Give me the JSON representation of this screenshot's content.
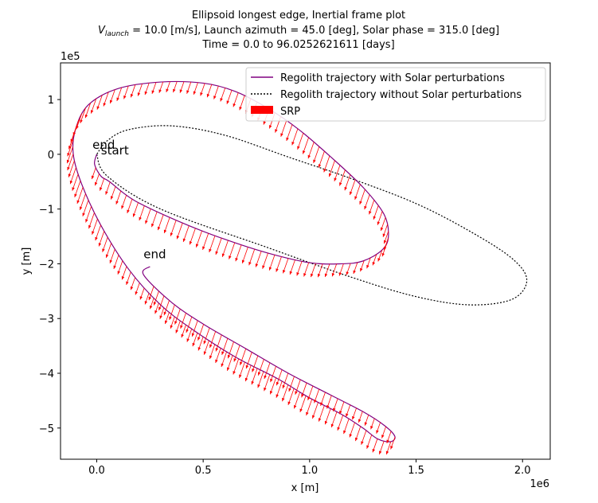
{
  "chart_data": {
    "type": "line",
    "title_lines": [
      "Ellipsoid longest edge, Inertial frame plot",
      "V_launch = 10.0 [m/s], Launch azimuth = 45.0 [deg], Solar phase = 315.0 [deg]",
      "Time = 0.0 to 96.0252621611 [days]"
    ],
    "title_line2_parts": {
      "symbol": "V",
      "subscript": "launch",
      "rest": " = 10.0 [m/s], Launch azimuth = 45.0 [deg], Solar phase = 315.0 [deg]"
    },
    "xlabel": "x [m]",
    "ylabel": "y [m]",
    "x_offset_label": "1e6",
    "y_offset_label": "1e5",
    "xlim": [
      -0.17,
      2.13
    ],
    "ylim": [
      -5.57,
      1.67
    ],
    "x_ticks": [
      0.0,
      0.5,
      1.0,
      1.5,
      2.0
    ],
    "x_tick_labels": [
      "0.0",
      "0.5",
      "1.0",
      "1.5",
      "2.0"
    ],
    "y_ticks": [
      1,
      0,
      -1,
      -2,
      -3,
      -4,
      -5
    ],
    "y_tick_labels": [
      "1",
      "0",
      "−1",
      "−2",
      "−3",
      "−4",
      "−5"
    ],
    "grid": false,
    "legend_placement": "top-right",
    "legend": [
      {
        "label": "Regolith trajectory with Solar perturbations",
        "color": "#800080",
        "style": "solid"
      },
      {
        "label": "Regolith trajectory without Solar perturbations",
        "color": "#000000",
        "style": "dotted"
      },
      {
        "label": "SRP",
        "color": "#ff0000",
        "style": "patch"
      }
    ],
    "series": [
      {
        "name": "Regolith trajectory with Solar perturbations",
        "color": "#800080",
        "points": [
          [
            0.0,
            0.0
          ],
          [
            -0.01,
            -0.18
          ],
          [
            0.02,
            -0.4
          ],
          [
            0.06,
            -0.5
          ],
          [
            0.18,
            -0.85
          ],
          [
            0.4,
            -1.25
          ],
          [
            0.6,
            -1.55
          ],
          [
            0.8,
            -1.8
          ],
          [
            1.0,
            -1.98
          ],
          [
            1.15,
            -2.0
          ],
          [
            1.25,
            -1.95
          ],
          [
            1.34,
            -1.75
          ],
          [
            1.37,
            -1.5
          ],
          [
            1.35,
            -1.1
          ],
          [
            1.25,
            -0.6
          ],
          [
            1.1,
            -0.05
          ],
          [
            0.95,
            0.45
          ],
          [
            0.8,
            0.85
          ],
          [
            0.65,
            1.15
          ],
          [
            0.5,
            1.3
          ],
          [
            0.3,
            1.32
          ],
          [
            0.1,
            1.2
          ],
          [
            -0.04,
            0.9
          ],
          [
            -0.1,
            0.45
          ],
          [
            -0.11,
            0.0
          ],
          [
            -0.07,
            -0.55
          ],
          [
            0.02,
            -1.3
          ],
          [
            0.15,
            -2.1
          ],
          [
            0.3,
            -2.75
          ],
          [
            0.45,
            -3.2
          ],
          [
            0.65,
            -3.7
          ],
          [
            0.85,
            -4.1
          ],
          [
            1.0,
            -4.45
          ],
          [
            1.15,
            -4.75
          ],
          [
            1.25,
            -5.0
          ],
          [
            1.32,
            -5.2
          ],
          [
            1.38,
            -5.25
          ],
          [
            1.4,
            -5.15
          ],
          [
            1.35,
            -4.95
          ],
          [
            1.25,
            -4.7
          ],
          [
            1.1,
            -4.4
          ],
          [
            0.9,
            -4.0
          ],
          [
            0.7,
            -3.55
          ],
          [
            0.5,
            -3.1
          ],
          [
            0.35,
            -2.7
          ],
          [
            0.22,
            -2.2
          ],
          [
            0.25,
            -2.05
          ]
        ]
      },
      {
        "name": "Regolith trajectory without Solar perturbations",
        "color": "#000000",
        "points": [
          [
            0.0,
            0.0
          ],
          [
            0.05,
            -0.4
          ],
          [
            0.3,
            -1.0
          ],
          [
            0.8,
            -1.7
          ],
          [
            1.2,
            -2.25
          ],
          [
            1.5,
            -2.6
          ],
          [
            1.75,
            -2.75
          ],
          [
            1.95,
            -2.65
          ],
          [
            2.02,
            -2.3
          ],
          [
            1.95,
            -1.9
          ],
          [
            1.75,
            -1.4
          ],
          [
            1.5,
            -0.9
          ],
          [
            1.2,
            -0.45
          ],
          [
            0.9,
            -0.05
          ],
          [
            0.6,
            0.35
          ],
          [
            0.35,
            0.52
          ],
          [
            0.15,
            0.45
          ],
          [
            0.05,
            0.25
          ],
          [
            0.0,
            0.0
          ]
        ]
      }
    ],
    "srp_arrows_note": "Solar radiation pressure vectors along the perturbed trajectory",
    "annotations": [
      {
        "text": "start",
        "x": 0.02,
        "y": 0.0,
        "color": "#007000"
      },
      {
        "text": "end",
        "x": -0.02,
        "y": 0.1,
        "color": "#8b0000"
      },
      {
        "text": "end",
        "x": 0.22,
        "y": -1.9,
        "color": "#8b0000"
      }
    ]
  }
}
